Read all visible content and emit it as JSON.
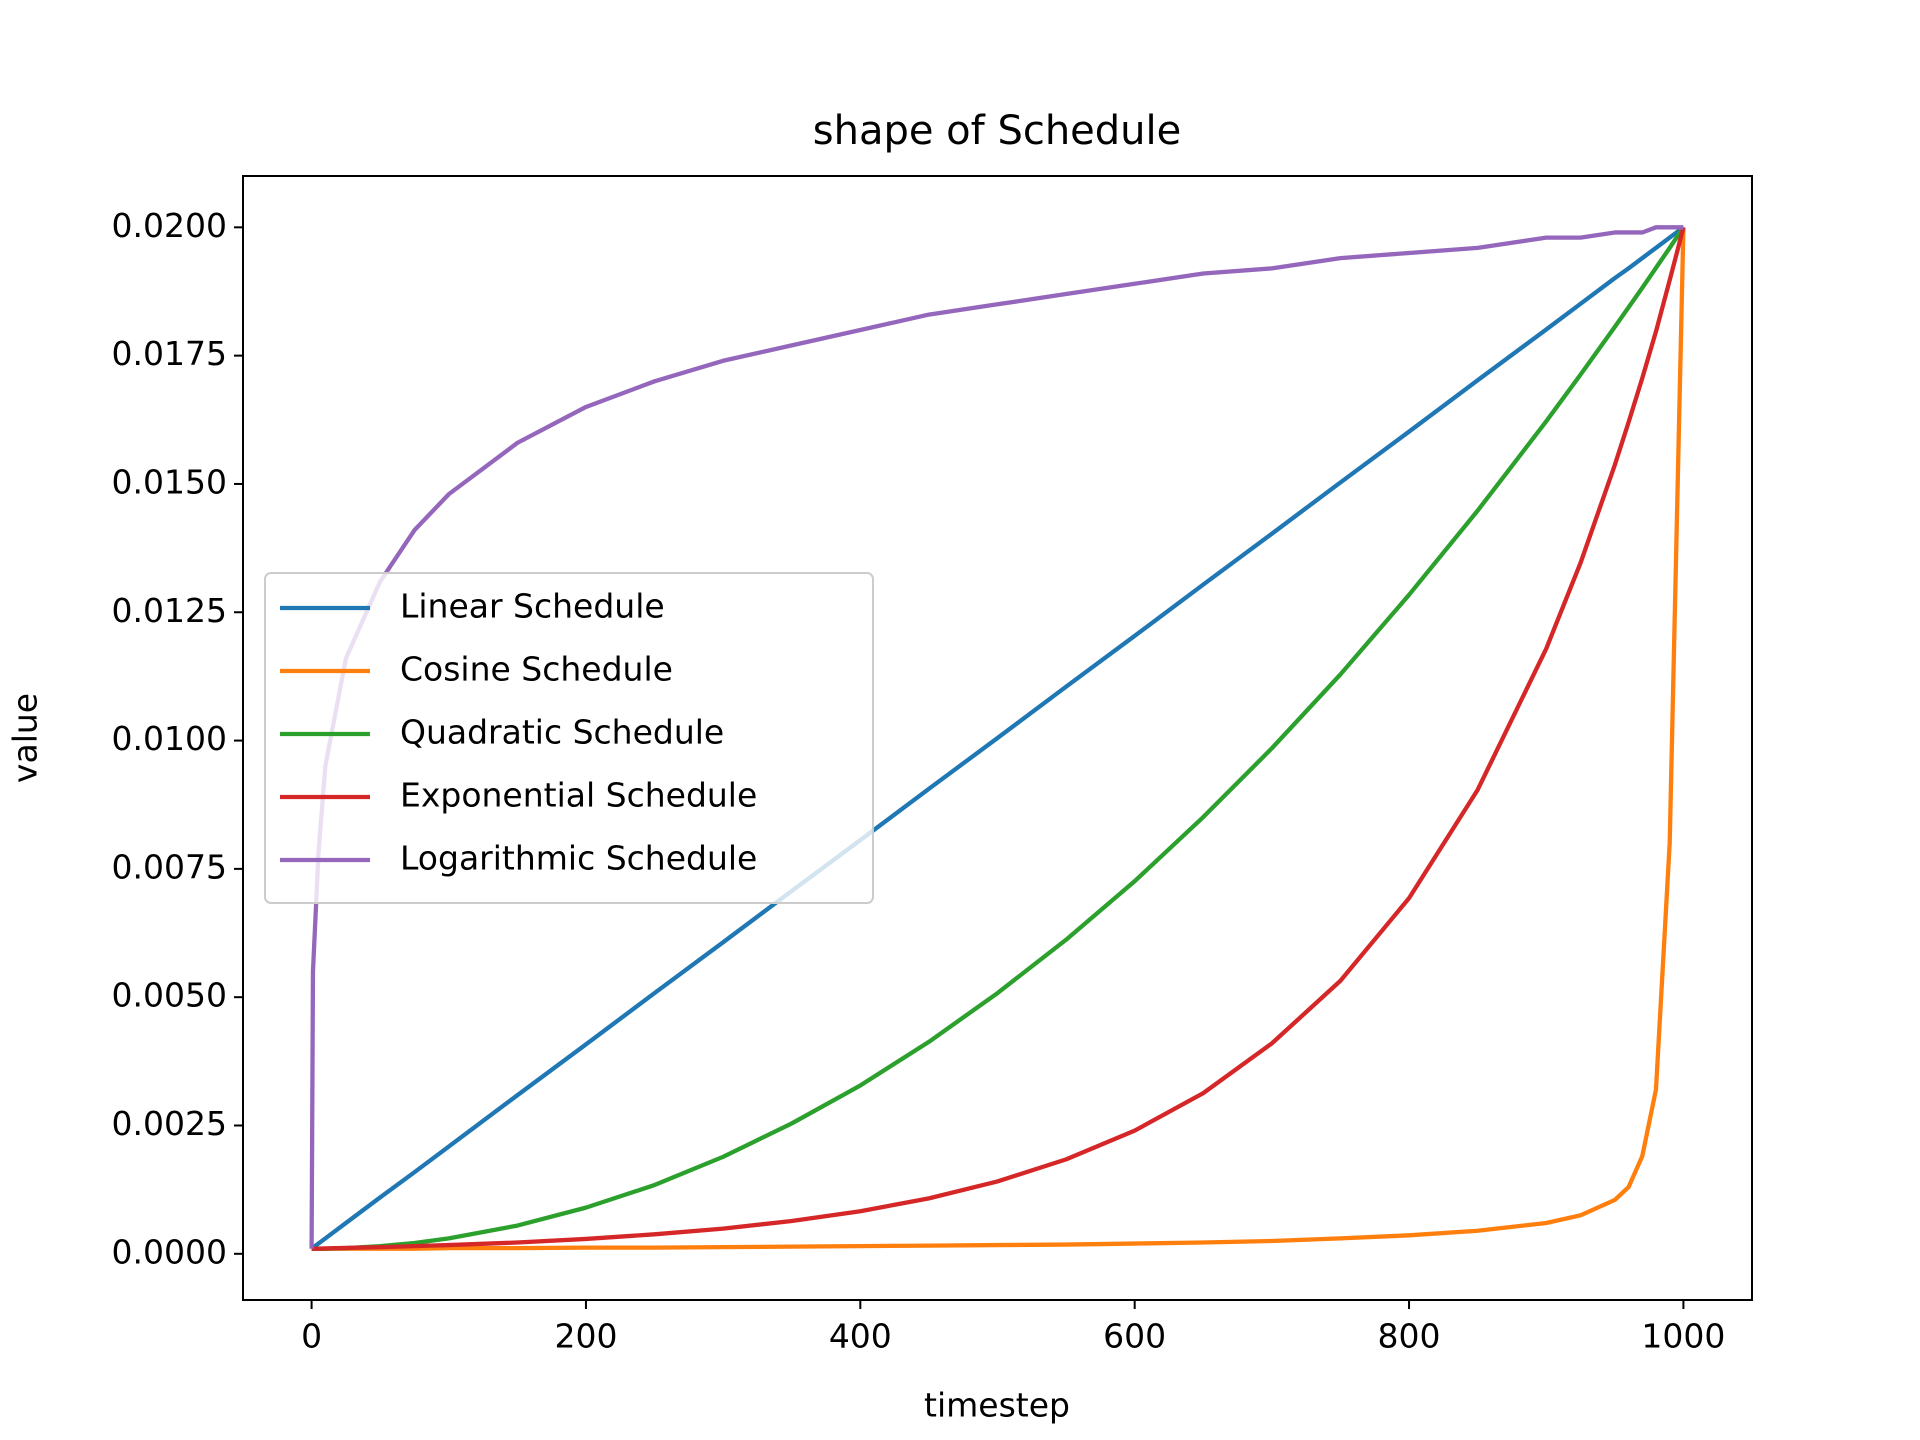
{
  "chart_data": {
    "type": "line",
    "title": "shape of Schedule",
    "x_label": "timestep",
    "y_label": "value",
    "x": [
      0,
      1,
      5,
      10,
      25,
      50,
      75,
      100,
      150,
      200,
      250,
      300,
      350,
      400,
      450,
      500,
      550,
      600,
      650,
      700,
      750,
      800,
      850,
      900,
      925,
      950,
      960,
      970,
      980,
      990,
      995,
      1000
    ],
    "series": [
      {
        "name": "Linear Schedule",
        "color": "#1f77b4",
        "values": [
          0.0001,
          0.00012,
          0.0002,
          0.0003,
          0.0006,
          0.0011,
          0.00159,
          0.00209,
          0.00309,
          0.00408,
          0.00508,
          0.00607,
          0.00707,
          0.00806,
          0.00906,
          0.01005,
          0.01105,
          0.01204,
          0.01304,
          0.01403,
          0.01503,
          0.01602,
          0.01702,
          0.01801,
          0.01851,
          0.01901,
          0.0192,
          0.0194,
          0.0196,
          0.0198,
          0.0199,
          0.02
        ]
      },
      {
        "name": "Cosine Schedule",
        "color": "#ff7f0e",
        "values": [
          0.0001,
          0.0001,
          0.0001,
          0.0001,
          0.0001,
          0.0001,
          0.0001,
          0.00011,
          0.00011,
          0.00012,
          0.00012,
          0.00013,
          0.00014,
          0.00015,
          0.00016,
          0.00017,
          0.00018,
          0.0002,
          0.00022,
          0.00025,
          0.0003,
          0.00036,
          0.00045,
          0.0006,
          0.00075,
          0.00105,
          0.0013,
          0.0019,
          0.0032,
          0.008,
          0.014,
          0.02
        ]
      },
      {
        "name": "Quadratic Schedule",
        "color": "#2ca02c",
        "values": [
          0.0001,
          0.0001,
          0.0001,
          0.0001,
          0.00011,
          0.00015,
          0.00021,
          0.0003,
          0.00055,
          0.0009,
          0.00134,
          0.00189,
          0.00254,
          0.00328,
          0.00413,
          0.00508,
          0.00612,
          0.00726,
          0.00851,
          0.00985,
          0.01129,
          0.01284,
          0.01448,
          0.01622,
          0.01713,
          0.01806,
          0.01844,
          0.01882,
          0.01921,
          0.0196,
          0.0198,
          0.02
        ]
      },
      {
        "name": "Exponential Schedule",
        "color": "#d62728",
        "values": [
          0.0001,
          0.0001,
          0.0001,
          0.000105,
          0.000114,
          0.00013,
          0.000149,
          0.00017,
          0.00022,
          0.00029,
          0.00038,
          0.00049,
          0.00064,
          0.00083,
          0.00108,
          0.00141,
          0.00184,
          0.0024,
          0.00313,
          0.0041,
          0.00532,
          0.00693,
          0.00904,
          0.01179,
          0.01346,
          0.01537,
          0.0162,
          0.01706,
          0.01797,
          0.01897,
          0.01948,
          0.02
        ]
      },
      {
        "name": "Logarithmic Schedule",
        "color": "#9467bd",
        "values": [
          0.0001,
          0.0055,
          0.0078,
          0.0095,
          0.0116,
          0.0131,
          0.0141,
          0.0148,
          0.0158,
          0.0165,
          0.017,
          0.0174,
          0.0177,
          0.018,
          0.0183,
          0.0185,
          0.0187,
          0.0189,
          0.0191,
          0.0192,
          0.0194,
          0.0195,
          0.0196,
          0.0198,
          0.0198,
          0.0199,
          0.0199,
          0.0199,
          0.02,
          0.02,
          0.02,
          0.02
        ]
      }
    ],
    "xlim": [
      -50,
      1050
    ],
    "xticks": [
      0,
      200,
      400,
      600,
      800,
      1000
    ],
    "ylim": [
      -0.0009,
      0.021
    ],
    "yticks": [
      {
        "value": 0,
        "label": "0.0000"
      },
      {
        "value": 0.0025,
        "label": "0.0025"
      },
      {
        "value": 0.005,
        "label": "0.0050"
      },
      {
        "value": 0.0075,
        "label": "0.0075"
      },
      {
        "value": 0.01,
        "label": "0.0100"
      },
      {
        "value": 0.0125,
        "label": "0.0125"
      },
      {
        "value": 0.015,
        "label": "0.0150"
      },
      {
        "value": 0.0175,
        "label": "0.0175"
      },
      {
        "value": 0.02,
        "label": "0.0200"
      }
    ],
    "grid": false,
    "legend_loc": "center left"
  }
}
